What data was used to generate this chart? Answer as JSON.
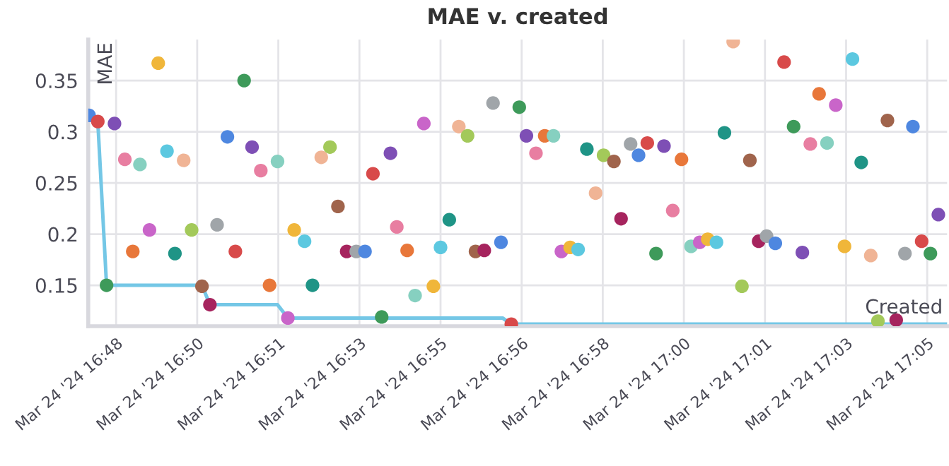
{
  "chart_data": {
    "type": "scatter",
    "title": "MAE v. created",
    "xlabel": "Created",
    "ylabel": "MAE",
    "xlim": [
      "2024-03-24T16:47:45",
      "2024-03-24T17:05:45"
    ],
    "ylim": [
      0.11,
      0.39
    ],
    "xticks": [
      {
        "value": "2024-03-24T16:48:20",
        "label": "Mar 24 '24 16:48"
      },
      {
        "value": "2024-03-24T16:50:02",
        "label": "Mar 24 '24 16:50"
      },
      {
        "value": "2024-03-24T16:51:44",
        "label": "Mar 24 '24 16:51"
      },
      {
        "value": "2024-03-24T16:53:26",
        "label": "Mar 24 '24 16:53"
      },
      {
        "value": "2024-03-24T16:55:08",
        "label": "Mar 24 '24 16:55"
      },
      {
        "value": "2024-03-24T16:56:50",
        "label": "Mar 24 '24 16:56"
      },
      {
        "value": "2024-03-24T16:58:32",
        "label": "Mar 24 '24 16:58"
      },
      {
        "value": "2024-03-24T17:00:14",
        "label": "Mar 24 '24 17:00"
      },
      {
        "value": "2024-03-24T17:01:56",
        "label": "Mar 24 '24 17:01"
      },
      {
        "value": "2024-03-24T17:03:38",
        "label": "Mar 24 '24 17:03"
      },
      {
        "value": "2024-03-24T17:05:20",
        "label": "Mar 24 '24 17:05"
      }
    ],
    "yticks": [
      0.15,
      0.2,
      0.25,
      0.3,
      0.35
    ],
    "grid": true,
    "series": [
      {
        "type": "line",
        "color": "#74c7e6",
        "marker": "none",
        "line_style": "solid",
        "x": [
          "2024-03-24T16:47:46",
          "2024-03-24T16:47:57",
          "2024-03-24T16:48:08",
          "2024-03-24T16:50:08",
          "2024-03-24T16:50:18",
          "2024-03-24T16:51:43",
          "2024-03-24T16:51:56",
          "2024-03-24T16:56:26",
          "2024-03-24T16:56:37",
          "2024-03-24T17:05:45"
        ],
        "values": [
          0.316,
          0.31,
          0.15,
          0.15,
          0.131,
          0.131,
          0.118,
          0.118,
          0.112,
          0.112
        ]
      },
      {
        "marker": "circle",
        "x": [
          "2024-03-24T16:47:46",
          "2024-03-24T16:47:57",
          "2024-03-24T16:48:18",
          "2024-03-24T16:48:08",
          "2024-03-24T16:48:31",
          "2024-03-24T16:48:41",
          "2024-03-24T16:48:50",
          "2024-03-24T16:49:02",
          "2024-03-24T16:49:13",
          "2024-03-24T16:49:24",
          "2024-03-24T16:49:34",
          "2024-03-24T16:49:45",
          "2024-03-24T16:49:55",
          "2024-03-24T16:50:08",
          "2024-03-24T16:50:18",
          "2024-03-24T16:50:27",
          "2024-03-24T16:50:40",
          "2024-03-24T16:50:50",
          "2024-03-24T16:51:01",
          "2024-03-24T16:51:11",
          "2024-03-24T16:51:22",
          "2024-03-24T16:51:33",
          "2024-03-24T16:51:43",
          "2024-03-24T16:51:56",
          "2024-03-24T16:52:04",
          "2024-03-24T16:52:17",
          "2024-03-24T16:52:27",
          "2024-03-24T16:52:38",
          "2024-03-24T16:52:49",
          "2024-03-24T16:52:59",
          "2024-03-24T16:53:10",
          "2024-03-24T16:53:22",
          "2024-03-24T16:53:33",
          "2024-03-24T16:53:43",
          "2024-03-24T16:53:54",
          "2024-03-24T16:54:05",
          "2024-03-24T16:54:13",
          "2024-03-24T16:54:26",
          "2024-03-24T16:54:36",
          "2024-03-24T16:54:47",
          "2024-03-24T16:54:59",
          "2024-03-24T16:55:08",
          "2024-03-24T16:55:19",
          "2024-03-24T16:55:31",
          "2024-03-24T16:55:42",
          "2024-03-24T16:55:52",
          "2024-03-24T16:56:03",
          "2024-03-24T16:56:14",
          "2024-03-24T16:56:24",
          "2024-03-24T16:56:37",
          "2024-03-24T16:56:47",
          "2024-03-24T16:56:56",
          "2024-03-24T16:57:08",
          "2024-03-24T16:57:19",
          "2024-03-24T16:57:30",
          "2024-03-24T16:57:40",
          "2024-03-24T16:57:51",
          "2024-03-24T16:58:01",
          "2024-03-24T16:58:12",
          "2024-03-24T16:58:23",
          "2024-03-24T16:58:33",
          "2024-03-24T16:58:46",
          "2024-03-24T16:58:55",
          "2024-03-24T16:59:07",
          "2024-03-24T16:59:17",
          "2024-03-24T16:59:28",
          "2024-03-24T16:59:39",
          "2024-03-24T16:59:49",
          "2024-03-24T17:00:00",
          "2024-03-24T17:00:11",
          "2024-03-24T17:00:23",
          "2024-03-24T17:00:34",
          "2024-03-24T17:00:44",
          "2024-03-24T17:00:55",
          "2024-03-24T17:01:05",
          "2024-03-24T17:01:16",
          "2024-03-24T17:01:27",
          "2024-03-24T17:01:37",
          "2024-03-24T17:01:48",
          "2024-03-24T17:01:58",
          "2024-03-24T17:02:09",
          "2024-03-24T17:02:20",
          "2024-03-24T17:02:32",
          "2024-03-24T17:02:43",
          "2024-03-24T17:02:53",
          "2024-03-24T17:03:04",
          "2024-03-24T17:03:14",
          "2024-03-24T17:03:25",
          "2024-03-24T17:03:36",
          "2024-03-24T17:03:46",
          "2024-03-24T17:03:57",
          "2024-03-24T17:04:09",
          "2024-03-24T17:04:18",
          "2024-03-24T17:04:30",
          "2024-03-24T17:04:41",
          "2024-03-24T17:04:52",
          "2024-03-24T17:05:02",
          "2024-03-24T17:05:13",
          "2024-03-24T17:05:24",
          "2024-03-24T17:05:34"
        ],
        "values": [
          0.316,
          0.31,
          0.308,
          0.15,
          0.273,
          0.183,
          0.268,
          0.204,
          0.367,
          0.281,
          0.181,
          0.272,
          0.204,
          0.149,
          0.131,
          0.209,
          0.295,
          0.183,
          0.35,
          0.285,
          0.262,
          0.15,
          0.271,
          0.118,
          0.204,
          0.193,
          0.15,
          0.275,
          0.285,
          0.227,
          0.183,
          0.183,
          0.183,
          0.259,
          0.119,
          0.279,
          0.207,
          0.184,
          0.14,
          0.308,
          0.149,
          0.187,
          0.214,
          0.305,
          0.296,
          0.183,
          0.184,
          0.328,
          0.192,
          0.112,
          0.324,
          0.296,
          0.279,
          0.296,
          0.296,
          0.183,
          0.187,
          0.185,
          0.283,
          0.24,
          0.277,
          0.271,
          0.215,
          0.288,
          0.277,
          0.289,
          0.181,
          0.286,
          0.223,
          0.273,
          0.188,
          0.192,
          0.195,
          0.192,
          0.299,
          0.388,
          0.149,
          0.272,
          0.193,
          0.198,
          0.191,
          0.368,
          0.305,
          0.182,
          0.288,
          0.337,
          0.289,
          0.326,
          0.188,
          0.371,
          0.27,
          0.179,
          0.115,
          0.311,
          0.116,
          0.181,
          0.305,
          0.193,
          0.181,
          0.219
        ],
        "colors": [
          "#4e87e0",
          "#d84a4a",
          "#7e4fb5",
          "#3e9a5a",
          "#e87ea1",
          "#e8773a",
          "#86d0c0",
          "#c965c9",
          "#f0b63a",
          "#5cc8e0",
          "#1f9486",
          "#f0b495",
          "#a3c95a",
          "#a0644c",
          "#a6245e",
          "#a0a5a9",
          "#4e87e0",
          "#d84a4a",
          "#3e9a5a",
          "#7e4fb5",
          "#e87ea1",
          "#e8773a",
          "#86d0c0",
          "#c965c9",
          "#f0b63a",
          "#5cc8e0",
          "#1f9486",
          "#f0b495",
          "#a3c95a",
          "#a0644c",
          "#a6245e",
          "#a0a5a9",
          "#4e87e0",
          "#d84a4a",
          "#3e9a5a",
          "#7e4fb5",
          "#e87ea1",
          "#e8773a",
          "#86d0c0",
          "#c965c9",
          "#f0b63a",
          "#5cc8e0",
          "#1f9486",
          "#f0b495",
          "#a3c95a",
          "#a0644c",
          "#a6245e",
          "#a0a5a9",
          "#4e87e0",
          "#d84a4a",
          "#3e9a5a",
          "#7e4fb5",
          "#e87ea1",
          "#e8773a",
          "#86d0c0",
          "#c965c9",
          "#f0b63a",
          "#5cc8e0",
          "#1f9486",
          "#f0b495",
          "#a3c95a",
          "#a0644c",
          "#a6245e",
          "#a0a5a9",
          "#4e87e0",
          "#d84a4a",
          "#3e9a5a",
          "#7e4fb5",
          "#e87ea1",
          "#e8773a",
          "#86d0c0",
          "#c965c9",
          "#f0b63a",
          "#5cc8e0",
          "#1f9486",
          "#f0b495",
          "#a3c95a",
          "#a0644c",
          "#a6245e",
          "#a0a5a9",
          "#4e87e0",
          "#d84a4a",
          "#3e9a5a",
          "#7e4fb5",
          "#e87ea1",
          "#e8773a",
          "#86d0c0",
          "#c965c9",
          "#f0b63a",
          "#5cc8e0",
          "#1f9486",
          "#f0b495",
          "#a3c95a",
          "#a0644c",
          "#a6245e",
          "#a0a5a9",
          "#4e87e0",
          "#d84a4a",
          "#3e9a5a",
          "#7e4fb5"
        ]
      }
    ]
  }
}
